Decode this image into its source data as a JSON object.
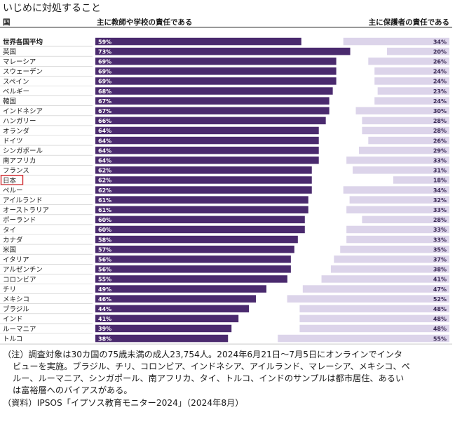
{
  "title": "いじめに対処すること",
  "header": {
    "col_country": "国",
    "col_teacher": "主に教師や学校の責任である",
    "col_parent": "主に保護者の責任である"
  },
  "colors": {
    "teacher_bar": "#4a2a6e",
    "parent_bar": "#dcd4ea",
    "highlight_box": "#d3262b"
  },
  "highlight_category": "日本",
  "chart_data": {
    "type": "bar",
    "categories": [
      "世界各国平均",
      "英国",
      "マレーシア",
      "スウェーデン",
      "スペイン",
      "ベルギー",
      "韓国",
      "インドネシア",
      "ハンガリー",
      "オランダ",
      "ドイツ",
      "シンガポール",
      "南アフリカ",
      "フランス",
      "日本",
      "ペルー",
      "アイルランド",
      "オーストラリア",
      "ポーランド",
      "タイ",
      "カナダ",
      "米国",
      "イタリア",
      "アルゼンチン",
      "コロンビア",
      "チリ",
      "メキシコ",
      "ブラジル",
      "インド",
      "ルーマニア",
      "トルコ"
    ],
    "series": [
      {
        "name": "主に教師や学校の責任である",
        "values": [
          59,
          73,
          69,
          69,
          69,
          68,
          67,
          67,
          66,
          64,
          64,
          64,
          64,
          62,
          62,
          62,
          61,
          61,
          60,
          60,
          58,
          57,
          56,
          56,
          55,
          49,
          46,
          44,
          41,
          39,
          38
        ],
        "labels": [
          "59%",
          "73%",
          "69%",
          "69%",
          "69%",
          "68%",
          "67%",
          "67%",
          "66%",
          "64%",
          "64%",
          "64%",
          "64%",
          "62%",
          "62%",
          "62%",
          "61%",
          "61%",
          "60%",
          "60%",
          "58%",
          "57%",
          "56%",
          "56%",
          "55%",
          "49%",
          "46%",
          "44%",
          "41%",
          "39%",
          "38%"
        ]
      },
      {
        "name": "主に保護者の責任である",
        "values": [
          34,
          20,
          26,
          24,
          24,
          23,
          24,
          30,
          28,
          28,
          26,
          29,
          33,
          31,
          18,
          34,
          32,
          33,
          28,
          33,
          33,
          35,
          37,
          38,
          41,
          47,
          52,
          48,
          48,
          48,
          55
        ],
        "labels": [
          "34%",
          "20%",
          "26%",
          "24%",
          "24%",
          "23%",
          "24%",
          "30%",
          "28%",
          "28%",
          "26%",
          "29%",
          "33%",
          "31%",
          "18%",
          "34%",
          "32%",
          "33%",
          "28%",
          "33%",
          "33%",
          "35%",
          "37%",
          "38%",
          "41%",
          "47%",
          "52%",
          "48%",
          "48%",
          "48%",
          "55%"
        ]
      }
    ]
  },
  "notes": [
    "（注）調査対象は30カ国の75歳未満の成人23,754人。2024年6月21日～7月5日にオンラインでインタ",
    "ビューを実施。ブラジル、チリ、コロンビア、インドネシア、アイルランド、マレーシア、メキシコ、ペ",
    "ルー、ルーマニア、シンガポール、南アフリカ、タイ、トルコ、インドのサンプルは都市居住、あるい",
    "は富裕層へのバイアスがある。",
    "（資料）IPSOS「イプソス教育モニター2024」（2024年8月）"
  ]
}
